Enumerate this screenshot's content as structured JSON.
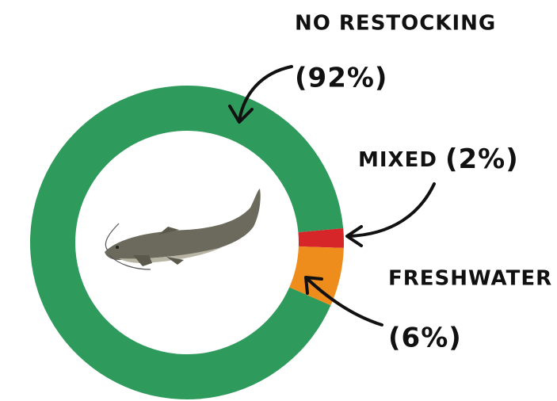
{
  "chart_data": {
    "type": "pie",
    "categories": [
      "NO RESTOCKING",
      "MIXED",
      "FRESHWATER"
    ],
    "values": [
      92,
      2,
      6
    ],
    "value_labels": [
      "(92%)",
      "(2%)",
      "(6%)"
    ],
    "colors": [
      "#2e9a5c",
      "#d7262a",
      "#ee8c1c"
    ]
  }
}
